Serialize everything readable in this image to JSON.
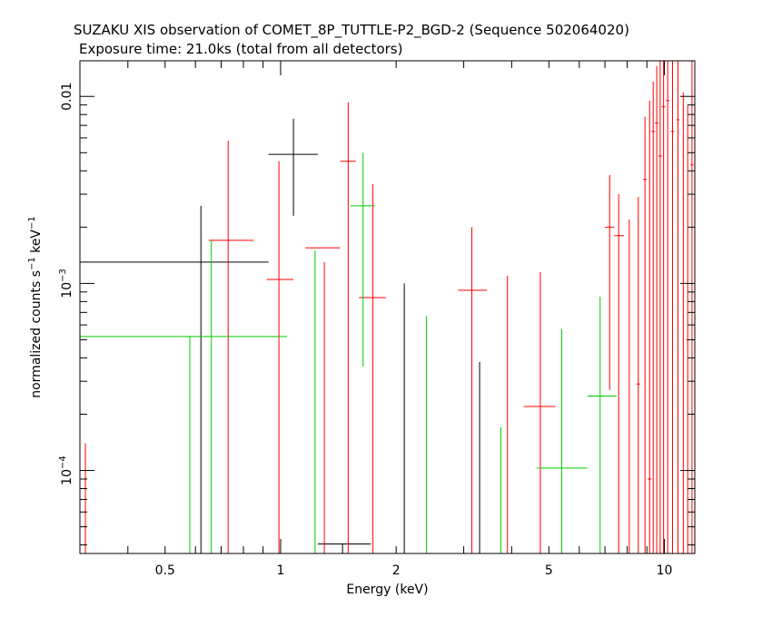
{
  "header": {
    "title": "SUZAKU XIS observation of COMET_8P_TUTTLE-P2_BGD-2 (Sequence 502064020)",
    "subtitle": "Exposure time: 21.0ks (total from all detectors)"
  },
  "chart_data": {
    "type": "scatter",
    "title": "SUZAKU XIS observation of COMET_8P_TUTTLE-P2_BGD-2 (Sequence 502064020)",
    "subtitle": "Exposure time: 21.0ks (total from all detectors)",
    "xlabel": "Energy (keV)",
    "ylabel": "normalized counts s^-1 keV^-1",
    "xscale": "log",
    "yscale": "log",
    "xlim": [
      0.3,
      12
    ],
    "ylim": [
      3.6e-05,
      0.0155
    ],
    "x_ticks": [
      {
        "value": 0.5,
        "label": "0.5"
      },
      {
        "value": 1,
        "label": "1"
      },
      {
        "value": 2,
        "label": "2"
      },
      {
        "value": 5,
        "label": "5"
      },
      {
        "value": 10,
        "label": "10"
      }
    ],
    "y_ticks": [
      {
        "value": 0.0001,
        "label": "10",
        "exp": "−4"
      },
      {
        "value": 0.001,
        "label": "10",
        "exp": "−3"
      },
      {
        "value": 0.01,
        "label": "0.01",
        "exp": ""
      }
    ],
    "series": [
      {
        "color": "#000000",
        "points": [
          {
            "x": 0.62,
            "xlo": 0.3,
            "xhi": 0.93,
            "y": 0.0013,
            "ylo": 1e-05,
            "yhi": 0.0026
          },
          {
            "x": 1.08,
            "xlo": 0.93,
            "xhi": 1.25,
            "y": 0.0049,
            "ylo": 0.0023,
            "yhi": 0.0076
          },
          {
            "x": 1.45,
            "xlo": 1.25,
            "xhi": 1.72,
            "y": 4.05e-05,
            "ylo": 1e-05,
            "yhi": 4.05e-05
          },
          {
            "x": 2.1,
            "xlo": 2.1,
            "xhi": 2.1,
            "y": 0.001,
            "ylo": 1e-05,
            "yhi": 0.001
          },
          {
            "x": 3.3,
            "xlo": 3.3,
            "xhi": 3.3,
            "y": 0.00038,
            "ylo": 1e-05,
            "yhi": 0.00038
          }
        ]
      },
      {
        "color": "#ff0000",
        "points": [
          {
            "x": 0.31,
            "xlo": 0.31,
            "xhi": 0.31,
            "y": 0.00014,
            "ylo": 1e-05,
            "yhi": 0.00014
          },
          {
            "x": 0.73,
            "xlo": 0.65,
            "xhi": 0.85,
            "y": 0.0017,
            "ylo": 1e-05,
            "yhi": 0.0058
          },
          {
            "x": 0.99,
            "xlo": 0.92,
            "xhi": 1.08,
            "y": 0.00105,
            "ylo": 1e-05,
            "yhi": 0.0045
          },
          {
            "x": 1.3,
            "xlo": 1.16,
            "xhi": 1.43,
            "y": 0.00155,
            "ylo": 1e-05,
            "yhi": 0.0013
          },
          {
            "x": 1.5,
            "xlo": 1.43,
            "xhi": 1.57,
            "y": 0.0045,
            "ylo": 1e-05,
            "yhi": 0.0093
          },
          {
            "x": 1.74,
            "xlo": 1.6,
            "xhi": 1.88,
            "y": 0.00084,
            "ylo": 1e-05,
            "yhi": 0.0034
          },
          {
            "x": 3.15,
            "xlo": 2.9,
            "xhi": 3.45,
            "y": 0.00092,
            "ylo": 1e-05,
            "yhi": 0.002
          },
          {
            "x": 3.9,
            "xlo": 3.9,
            "xhi": 3.9,
            "y": 0.0011,
            "ylo": 1e-05,
            "yhi": 0.0011
          },
          {
            "x": 4.75,
            "xlo": 4.3,
            "xhi": 5.2,
            "y": 0.00022,
            "ylo": 1e-05,
            "yhi": 0.00115
          },
          {
            "x": 7.2,
            "xlo": 7.0,
            "xhi": 7.4,
            "y": 0.002,
            "ylo": 0.00027,
            "yhi": 0.0038
          },
          {
            "x": 7.6,
            "xlo": 7.4,
            "xhi": 7.85,
            "y": 0.0018,
            "ylo": 1e-05,
            "yhi": 0.003
          },
          {
            "x": 8.1,
            "xlo": 8.1,
            "xhi": 8.1,
            "y": 0.0022,
            "ylo": 1e-05,
            "yhi": 0.0022
          },
          {
            "x": 8.55,
            "xlo": 8.45,
            "xhi": 8.65,
            "y": 0.00029,
            "ylo": 1e-05,
            "yhi": 0.0029
          },
          {
            "x": 8.9,
            "xlo": 8.8,
            "xhi": 9.0,
            "y": 0.0036,
            "ylo": 1e-05,
            "yhi": 0.0078
          },
          {
            "x": 9.15,
            "xlo": 9.05,
            "xhi": 9.25,
            "y": 9e-05,
            "ylo": 1e-05,
            "yhi": 0.0095
          },
          {
            "x": 9.35,
            "xlo": 9.25,
            "xhi": 9.45,
            "y": 0.0065,
            "ylo": 1e-05,
            "yhi": 0.012
          },
          {
            "x": 9.55,
            "xlo": 9.45,
            "xhi": 9.65,
            "y": 0.0072,
            "ylo": 1e-05,
            "yhi": 0.0145
          },
          {
            "x": 9.75,
            "xlo": 9.65,
            "xhi": 9.85,
            "y": 0.0048,
            "ylo": 1e-05,
            "yhi": 0.0155
          },
          {
            "x": 9.95,
            "xlo": 9.85,
            "xhi": 10.05,
            "y": 0.0088,
            "ylo": 1e-05,
            "yhi": 0.0155
          },
          {
            "x": 10.2,
            "xlo": 10.1,
            "xhi": 10.3,
            "y": 0.0095,
            "ylo": 1e-05,
            "yhi": 0.0155
          },
          {
            "x": 10.5,
            "xlo": 10.4,
            "xhi": 10.6,
            "y": 0.0065,
            "ylo": 1e-05,
            "yhi": 0.0155
          },
          {
            "x": 10.85,
            "xlo": 10.75,
            "xhi": 10.95,
            "y": 0.0075,
            "ylo": 1e-05,
            "yhi": 0.0155
          },
          {
            "x": 11.2,
            "xlo": 11.1,
            "xhi": 11.3,
            "y": 0.001,
            "ylo": 1e-05,
            "yhi": 0.0105
          },
          {
            "x": 11.5,
            "xlo": 11.4,
            "xhi": 11.6,
            "y": 0.0005,
            "ylo": 1e-05,
            "yhi": 0.009
          },
          {
            "x": 11.8,
            "xlo": 11.7,
            "xhi": 11.9,
            "y": 0.0043,
            "ylo": 1e-05,
            "yhi": 0.0155
          }
        ]
      },
      {
        "color": "#00cc00",
        "points": [
          {
            "x": 0.58,
            "xlo": 0.3,
            "xhi": 1.04,
            "y": 0.00052,
            "ylo": 1e-05,
            "yhi": 0.00052
          },
          {
            "x": 0.66,
            "xlo": 0.66,
            "xhi": 0.66,
            "y": 0.0017,
            "ylo": 1e-05,
            "yhi": 0.0017
          },
          {
            "x": 1.23,
            "xlo": 1.23,
            "xhi": 1.23,
            "y": 0.0015,
            "ylo": 1e-05,
            "yhi": 0.0015
          },
          {
            "x": 1.64,
            "xlo": 1.52,
            "xhi": 1.76,
            "y": 0.0026,
            "ylo": 0.00036,
            "yhi": 0.005
          },
          {
            "x": 2.4,
            "xlo": 2.4,
            "xhi": 2.4,
            "y": 0.00067,
            "ylo": 1e-05,
            "yhi": 0.00067
          },
          {
            "x": 3.75,
            "xlo": 3.75,
            "xhi": 3.75,
            "y": 0.00017,
            "ylo": 1e-05,
            "yhi": 0.00017
          },
          {
            "x": 5.4,
            "xlo": 4.65,
            "xhi": 6.3,
            "y": 0.000103,
            "ylo": 1e-05,
            "yhi": 0.00057
          },
          {
            "x": 6.8,
            "xlo": 6.3,
            "xhi": 7.5,
            "y": 0.00025,
            "ylo": 1e-05,
            "yhi": 0.00085
          }
        ]
      }
    ]
  }
}
